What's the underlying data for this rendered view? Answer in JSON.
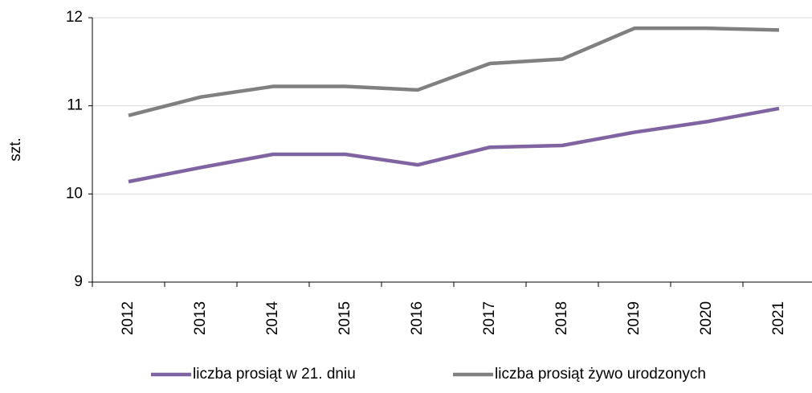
{
  "chart_data": {
    "type": "line",
    "y_label": "szt.",
    "categories": [
      "2012",
      "2013",
      "2014",
      "2015",
      "2016",
      "2017",
      "2018",
      "2019",
      "2020",
      "2021"
    ],
    "series": [
      {
        "name": "liczba prosiąt w 21. dniu",
        "color": "#8064a2",
        "values": [
          10.14,
          10.3,
          10.45,
          10.45,
          10.33,
          10.53,
          10.55,
          10.7,
          10.82,
          10.97
        ]
      },
      {
        "name": "liczba prosiąt żywo urodzonych",
        "color": "#808080",
        "values": [
          10.89,
          11.1,
          11.22,
          11.22,
          11.18,
          11.48,
          11.53,
          11.88,
          11.88,
          11.86
        ]
      }
    ],
    "ylim": [
      9,
      12
    ],
    "yticks": [
      9,
      10,
      11,
      12
    ],
    "grid": true,
    "legend": "bottom"
  }
}
